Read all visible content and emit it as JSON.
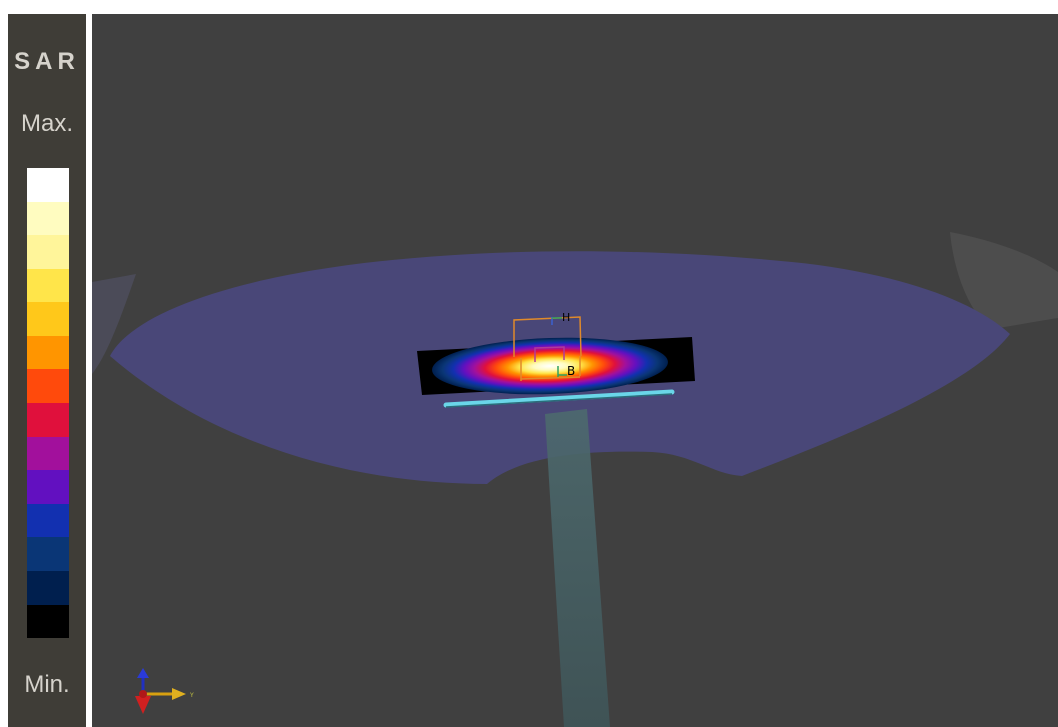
{
  "legend": {
    "title": "SAR",
    "max_label": "Max.",
    "min_label": "Min.",
    "scale_colors": [
      "#ffffff",
      "#fffcc0",
      "#fff59a",
      "#ffe54a",
      "#ffc81a",
      "#ff9500",
      "#ff4a0c",
      "#e0103c",
      "#a2109c",
      "#6210c0",
      "#1230b0",
      "#0a3676",
      "#001f4e",
      "#000000"
    ]
  },
  "scene": {
    "probe_labels": {
      "top": "H",
      "bottom": "B"
    },
    "axes_labels": {
      "y": "Y"
    },
    "colors": {
      "background": "#404040",
      "phantom": "#494778",
      "substrate": "#000000",
      "dipole": "#6ad6e8",
      "probe_box": "#e08a2a"
    }
  }
}
